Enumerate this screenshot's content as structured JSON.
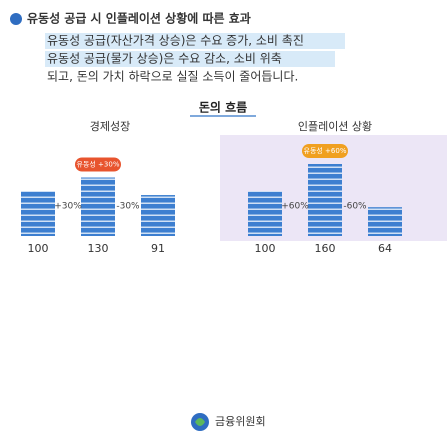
{
  "header": {
    "lines": [
      "유동성 공급 시 인플레이션 상황에 따른 효과",
      "유동성 공급(자산가격 상승)은 수요 증가, 소비 촉진",
      "유동성 공급(물가 상승)은 수요 감소, 소비 위축",
      "되고, 돈의 가치 하락으로 실질 소득이 줄어듭니다."
    ]
  },
  "subtitle": "돈의 흐름",
  "groups": [
    {
      "label": "경제성장",
      "tag": "유동성 +30%",
      "items": [
        {
          "value": 100
        },
        {
          "value": 130,
          "change": "+30%"
        },
        {
          "value": 91,
          "change": "-30%"
        }
      ]
    },
    {
      "label": "인플레이션 상황",
      "tag": "유동성 +60%",
      "items": [
        {
          "value": 100
        },
        {
          "value": 160,
          "change": "+60%"
        },
        {
          "value": 64,
          "change": "-60%"
        }
      ]
    }
  ],
  "footer": "금융위원회"
}
